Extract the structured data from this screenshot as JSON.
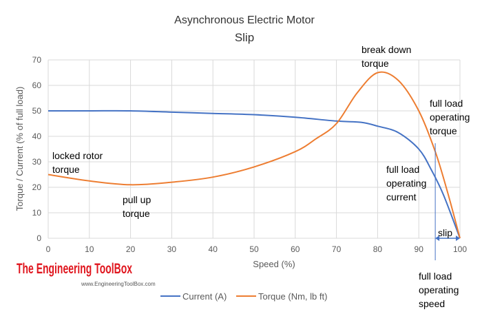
{
  "chart_data": {
    "type": "line",
    "title": "Asynchronous Electric Motor",
    "subtitle": "Slip",
    "xlabel": "Speed (%)",
    "ylabel": "Torque / Current (% of full load)",
    "xlim": [
      0,
      100
    ],
    "ylim": [
      0,
      70
    ],
    "xticks": [
      0,
      10,
      20,
      30,
      40,
      50,
      60,
      70,
      80,
      90,
      100
    ],
    "yticks": [
      0,
      10,
      20,
      30,
      40,
      50,
      60,
      70
    ],
    "grid": true,
    "legend_position": "bottom",
    "series": [
      {
        "name": "Current (A)",
        "color": "#4472C4",
        "x": [
          0,
          10,
          20,
          30,
          40,
          50,
          60,
          70,
          76,
          80,
          85,
          90,
          93,
          96,
          100
        ],
        "y": [
          50,
          50,
          50,
          49.5,
          49,
          48.5,
          47.5,
          46,
          45.5,
          44,
          41.5,
          35,
          27,
          17,
          0
        ]
      },
      {
        "name": "Torque (Nm, lb ft)",
        "color": "#ED7D31",
        "x": [
          0,
          10,
          20,
          30,
          40,
          50,
          60,
          65,
          70,
          75,
          80,
          85,
          90,
          94,
          97,
          100
        ],
        "y": [
          25,
          22.5,
          21,
          22,
          24,
          28,
          34,
          39,
          45,
          57,
          65,
          62,
          50,
          34,
          18,
          0
        ]
      }
    ],
    "annotations": {
      "locked_rotor": [
        "locked rotor",
        "torque"
      ],
      "pull_up": [
        "pull up",
        "torque"
      ],
      "break_down": [
        "break down",
        "torque"
      ],
      "full_load_torque": [
        "full load",
        "operating",
        "torque"
      ],
      "full_load_current": [
        "full load",
        "operating",
        "current"
      ],
      "full_load_speed": [
        "full load",
        "operating",
        "speed"
      ],
      "slip": "slip",
      "full_load_speed_value": 94
    },
    "brand": {
      "name": "The Engineering ToolBox",
      "url": "www.EngineeringToolBox.com",
      "color": "#E0161E"
    }
  }
}
